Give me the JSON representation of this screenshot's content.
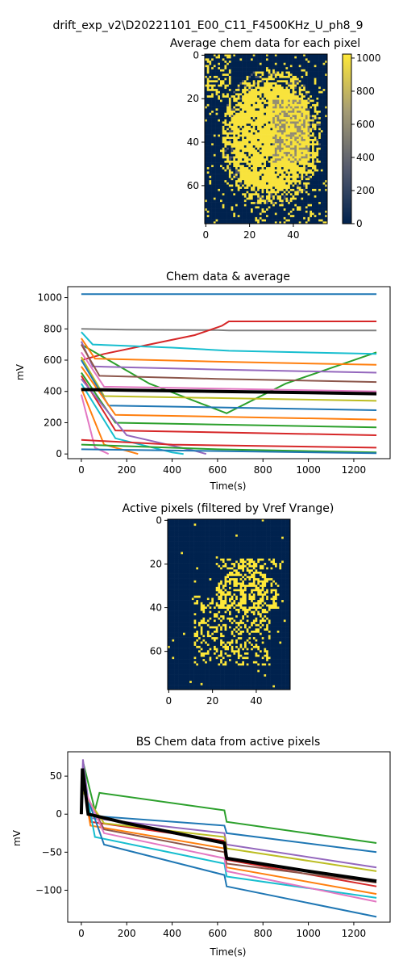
{
  "figure": {
    "suptitle": "drift_exp_v2\\D20221101_E00_C11_F4500KHz_U_ph8_9"
  },
  "chart_data": [
    {
      "type": "heatmap",
      "title": "Average chem data for each pixel",
      "xlabel": "",
      "ylabel": "",
      "grid_shape": [
        78,
        56
      ],
      "xticks": [
        0,
        20,
        40
      ],
      "yticks": [
        0,
        20,
        40,
        60
      ],
      "colorbar": {
        "min": 0,
        "max": 1024,
        "ticks": [
          0,
          200,
          400,
          600,
          800,
          1000
        ],
        "colors": [
          "#00224e",
          "#575c6e",
          "#a59c74",
          "#fee838"
        ]
      }
    },
    {
      "type": "line",
      "title": "Chem data & average",
      "xlabel": "Time(s)",
      "ylabel": "mV",
      "xlim": [
        -60,
        1360
      ],
      "ylim": [
        -30,
        1070
      ],
      "xticks": [
        0,
        200,
        400,
        600,
        800,
        1000,
        1200
      ],
      "yticks": [
        0,
        200,
        400,
        600,
        800,
        1000
      ],
      "series": [
        {
          "color": "#1f77b4",
          "x": [
            0,
            1300
          ],
          "y": [
            1022,
            1022
          ]
        },
        {
          "color": "#7f7f7f",
          "x": [
            0,
            200,
            600,
            650,
            1300
          ],
          "y": [
            800,
            795,
            792,
            790,
            790
          ]
        },
        {
          "color": "#d62728",
          "x": [
            0,
            100,
            300,
            500,
            620,
            650,
            1300
          ],
          "y": [
            600,
            640,
            700,
            760,
            820,
            848,
            848
          ]
        },
        {
          "color": "#2ca02c",
          "x": [
            0,
            300,
            640,
            900,
            1300
          ],
          "y": [
            700,
            450,
            260,
            450,
            650
          ]
        },
        {
          "color": "#17becf",
          "x": [
            0,
            50,
            400,
            650,
            1300
          ],
          "y": [
            780,
            700,
            680,
            660,
            640
          ]
        },
        {
          "color": "#ff7f0e",
          "x": [
            0,
            60,
            600,
            1300
          ],
          "y": [
            740,
            610,
            590,
            570
          ]
        },
        {
          "color": "#9467bd",
          "x": [
            0,
            50,
            600,
            1300
          ],
          "y": [
            720,
            560,
            540,
            520
          ]
        },
        {
          "color": "#8c564b",
          "x": [
            0,
            80,
            600,
            1300
          ],
          "y": [
            700,
            500,
            480,
            460
          ]
        },
        {
          "color": "#e377c2",
          "x": [
            0,
            100,
            1300
          ],
          "y": [
            650,
            430,
            400
          ]
        },
        {
          "color": "#bcbd22",
          "x": [
            0,
            100,
            1300
          ],
          "y": [
            620,
            370,
            340
          ]
        },
        {
          "color": "#1f77b4",
          "x": [
            0,
            120,
            1300
          ],
          "y": [
            600,
            310,
            280
          ]
        },
        {
          "color": "#ff7f0e",
          "x": [
            0,
            150,
            1300
          ],
          "y": [
            560,
            250,
            220
          ]
        },
        {
          "color": "#2ca02c",
          "x": [
            0,
            150,
            1300
          ],
          "y": [
            520,
            200,
            170
          ]
        },
        {
          "color": "#d62728",
          "x": [
            0,
            150,
            1300
          ],
          "y": [
            500,
            150,
            120
          ]
        },
        {
          "color": "#9467bd",
          "x": [
            0,
            200,
            500,
            550
          ],
          "y": [
            480,
            120,
            20,
            0
          ]
        },
        {
          "color": "#17becf",
          "x": [
            0,
            150,
            400,
            450
          ],
          "y": [
            450,
            100,
            10,
            0
          ]
        },
        {
          "color": "#ff7f0e",
          "x": [
            0,
            100,
            250
          ],
          "y": [
            420,
            60,
            0
          ]
        },
        {
          "color": "#e377c2",
          "x": [
            0,
            60,
            120
          ],
          "y": [
            380,
            40,
            0
          ]
        },
        {
          "color": "#d62728",
          "x": [
            0,
            400,
            1300
          ],
          "y": [
            90,
            60,
            40
          ]
        },
        {
          "color": "#2ca02c",
          "x": [
            0,
            600,
            1300
          ],
          "y": [
            60,
            30,
            10
          ]
        },
        {
          "color": "#1f77b4",
          "x": [
            0,
            1300
          ],
          "y": [
            30,
            5
          ]
        }
      ],
      "average": {
        "color": "#000000",
        "x": [
          0,
          200,
          600,
          1000,
          1300
        ],
        "y": [
          412,
          408,
          400,
          392,
          385
        ]
      }
    },
    {
      "type": "heatmap",
      "title": "Active pixels (filtered by Vref Vrange)",
      "xlabel": "",
      "ylabel": "",
      "grid_shape": [
        78,
        56
      ],
      "xticks": [
        0,
        20,
        40
      ],
      "yticks": [
        0,
        20,
        40,
        60
      ],
      "colors": [
        "#00224e",
        "#fee838"
      ]
    },
    {
      "type": "line",
      "title": "BS Chem data from active pixels",
      "xlabel": "Time(s)",
      "ylabel": "mV",
      "xlim": [
        -60,
        1360
      ],
      "ylim": [
        -142,
        82
      ],
      "xticks": [
        0,
        200,
        400,
        600,
        800,
        1000,
        1200
      ],
      "yticks": [
        50,
        0,
        -50,
        -100
      ],
      "series": [
        {
          "color": "#2ca02c",
          "x": [
            0,
            8,
            60,
            80,
            630,
            640,
            1300
          ],
          "y": [
            0,
            68,
            5,
            28,
            5,
            -10,
            -38
          ]
        },
        {
          "color": "#1f77b4",
          "x": [
            0,
            6,
            40,
            630,
            640,
            1300
          ],
          "y": [
            0,
            60,
            -2,
            -15,
            -25,
            -50
          ]
        },
        {
          "color": "#9467bd",
          "x": [
            0,
            7,
            40,
            630,
            640,
            1300
          ],
          "y": [
            0,
            72,
            -5,
            -25,
            -40,
            -70
          ]
        },
        {
          "color": "#d62728",
          "x": [
            0,
            5,
            40,
            630,
            640,
            1300
          ],
          "y": [
            0,
            50,
            -10,
            -35,
            -60,
            -95
          ]
        },
        {
          "color": "#ff7f0e",
          "x": [
            0,
            5,
            40,
            630,
            640,
            1300
          ],
          "y": [
            0,
            45,
            -15,
            -45,
            -70,
            -105
          ]
        },
        {
          "color": "#17becf",
          "x": [
            0,
            5,
            60,
            630,
            640,
            1300
          ],
          "y": [
            0,
            55,
            -30,
            -65,
            -82,
            -110
          ]
        },
        {
          "color": "#1f77b4",
          "x": [
            0,
            5,
            100,
            630,
            640,
            1300
          ],
          "y": [
            0,
            40,
            -40,
            -80,
            -95,
            -135
          ]
        },
        {
          "color": "#8c564b",
          "x": [
            0,
            5,
            100,
            630,
            640,
            1300
          ],
          "y": [
            0,
            35,
            -20,
            -50,
            -65,
            -90
          ]
        },
        {
          "color": "#bcbd22",
          "x": [
            0,
            5,
            100,
            630,
            640,
            1300
          ],
          "y": [
            0,
            30,
            -12,
            -30,
            -45,
            -75
          ]
        },
        {
          "color": "#e377c2",
          "x": [
            0,
            5,
            100,
            630,
            640,
            1300
          ],
          "y": [
            0,
            38,
            -25,
            -58,
            -75,
            -115
          ]
        }
      ],
      "average": {
        "color": "#000000",
        "x": [
          0,
          5,
          30,
          200,
          630,
          640,
          1000,
          1300
        ],
        "y": [
          0,
          60,
          0,
          -12,
          -38,
          -58,
          -75,
          -88
        ]
      }
    }
  ]
}
